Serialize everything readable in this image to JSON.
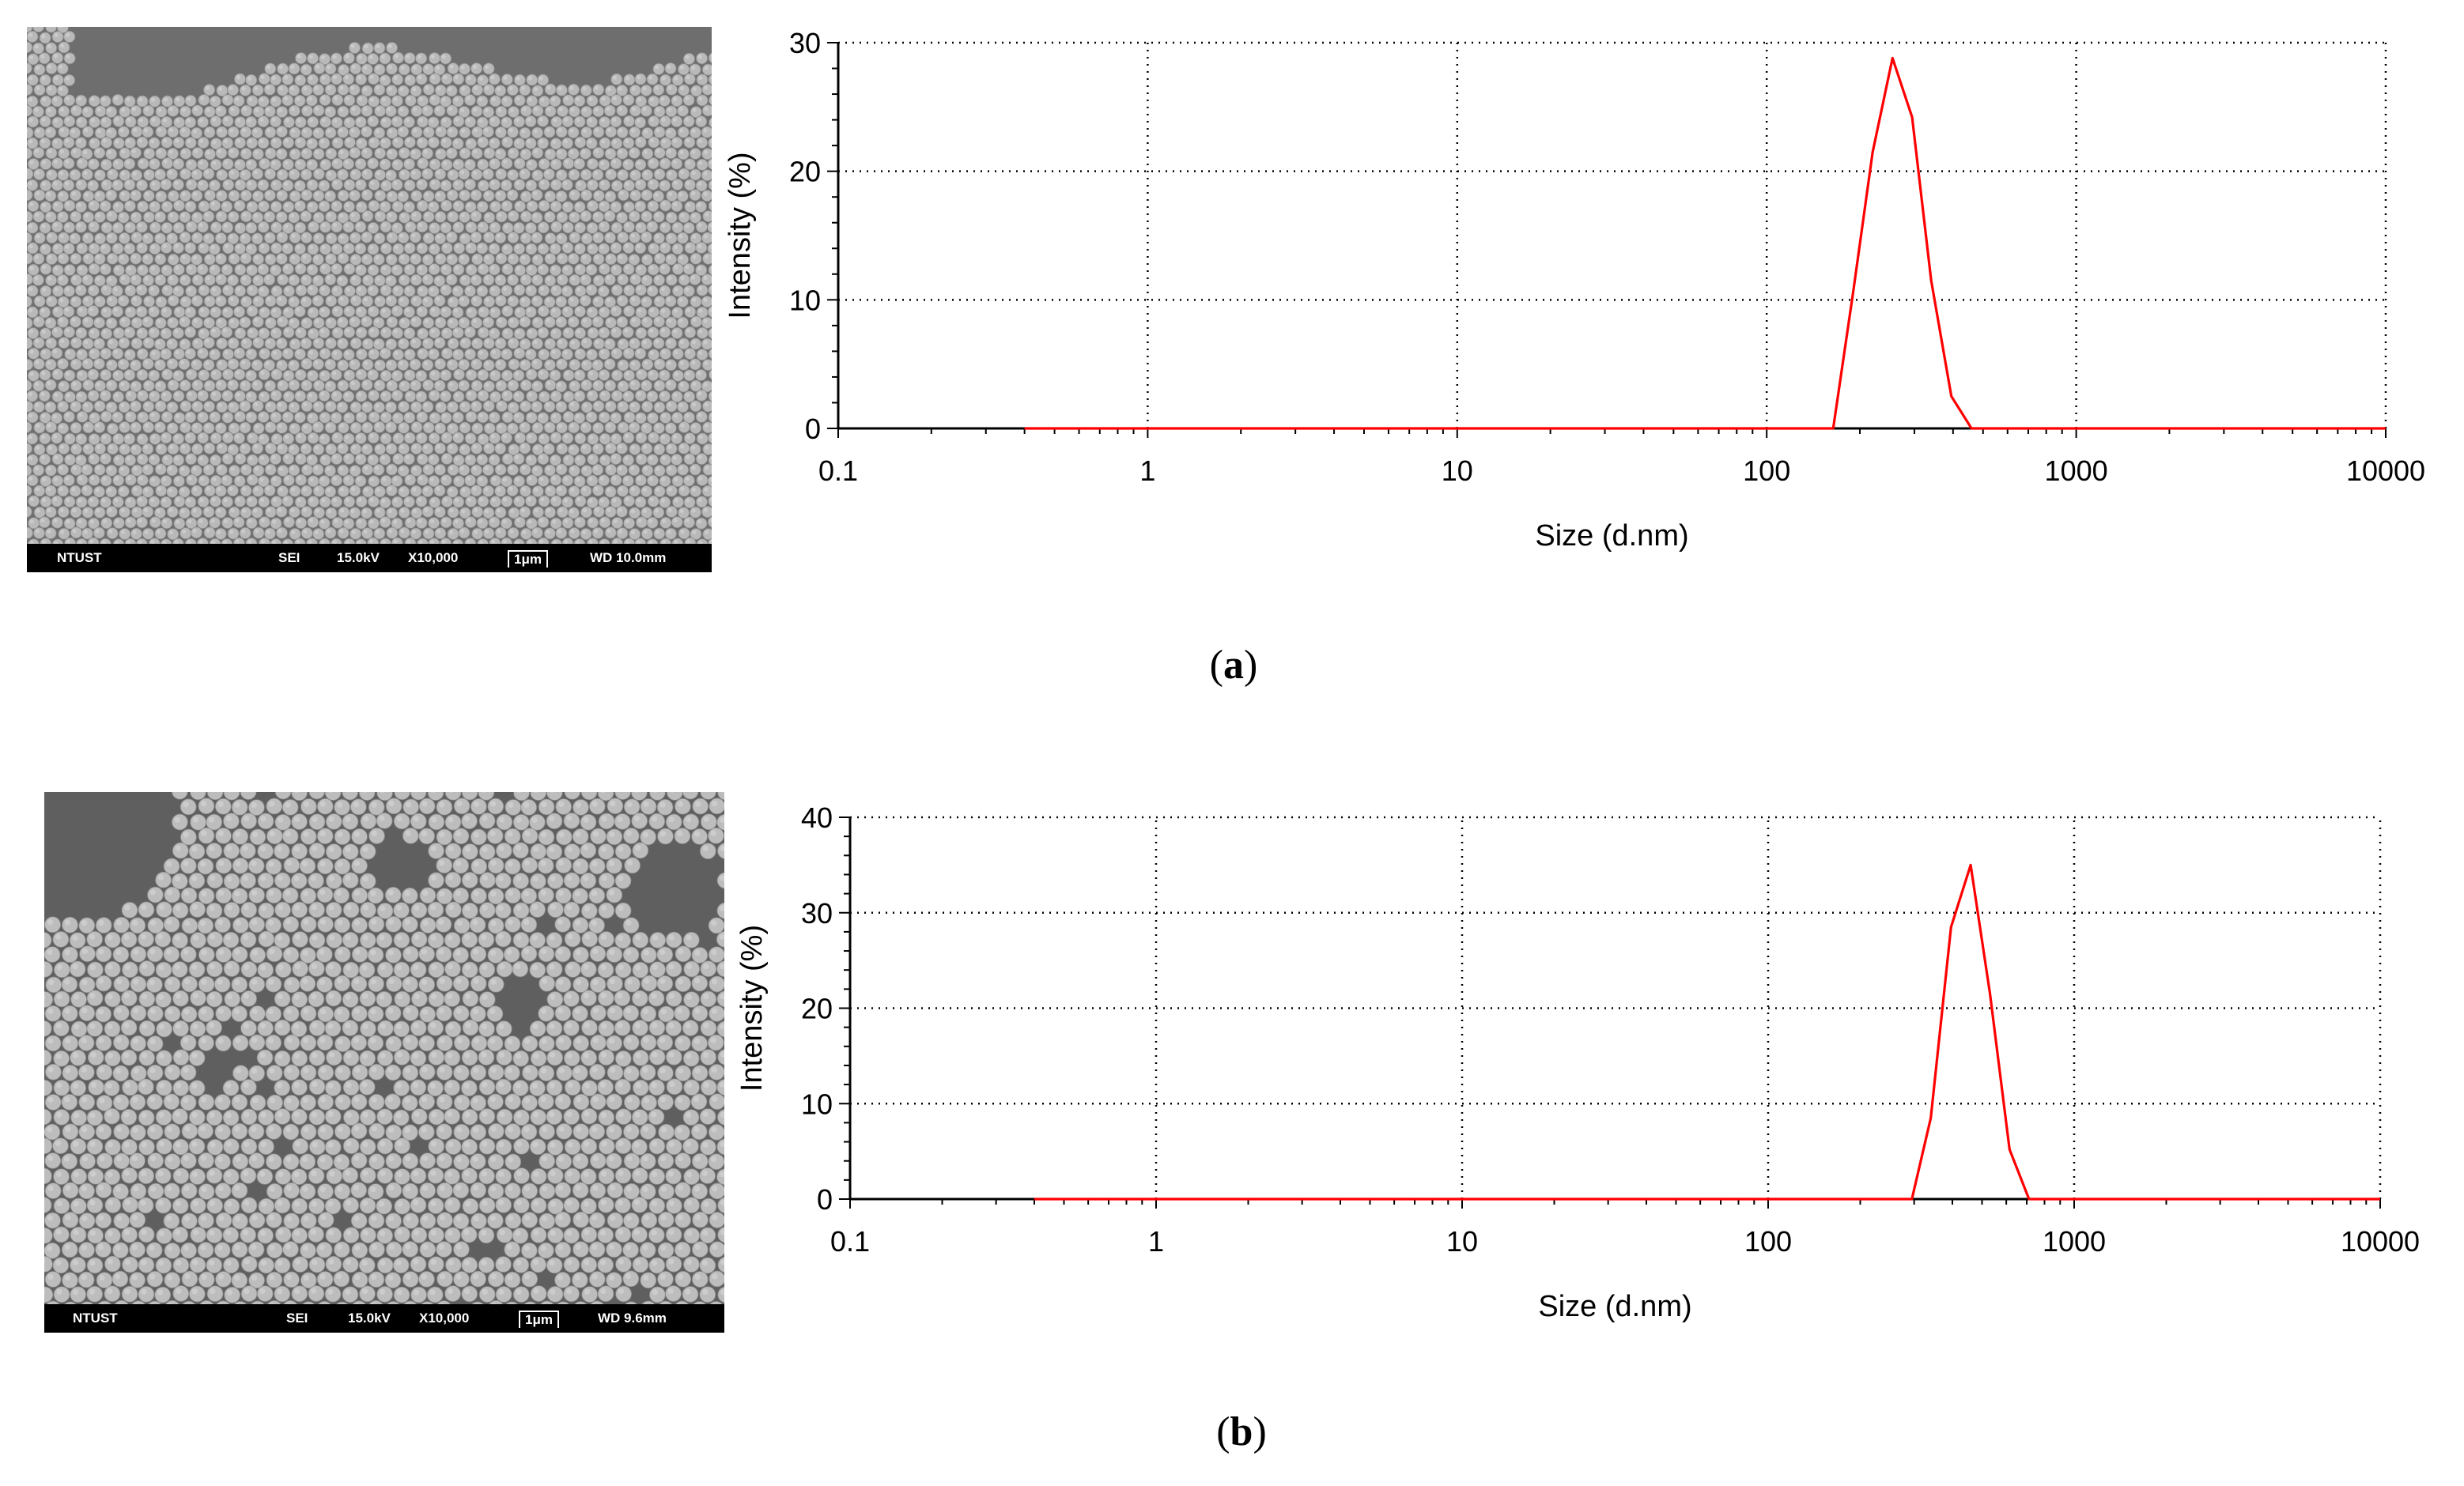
{
  "panels": [
    {
      "caption_letter": "a",
      "sem": {
        "labels": {
          "org": "NTUST",
          "mode": "SEI",
          "kv": "15.0kV",
          "mag": "X10,000",
          "scale": "1μm",
          "wd": "WD 10.0mm"
        },
        "background": "#6e6e6e",
        "sphere_color": "#b9b9b9"
      }
    },
    {
      "caption_letter": "b",
      "sem": {
        "labels": {
          "org": "NTUST",
          "mode": "SEI",
          "kv": "15.0kV",
          "mag": "X10,000",
          "scale": "1μm",
          "wd": "WD 9.6mm"
        },
        "background": "#5f5f5f",
        "sphere_color": "#bdbdbd"
      }
    }
  ],
  "chart_data": [
    {
      "type": "line",
      "xscale": "log",
      "xlim": [
        0.1,
        10000
      ],
      "ylim": [
        0,
        30
      ],
      "xticks": [
        "0.1",
        "1",
        "10",
        "100",
        "1000",
        "10000"
      ],
      "yticks": [
        "0",
        "10",
        "20",
        "30"
      ],
      "xlabel": "Size (d.nm)",
      "ylabel": "Intensity (%)",
      "grid": true,
      "line_color": "#ff0000",
      "series": [
        {
          "x": [
            0.4,
            164,
            190,
            220,
            255,
            295,
            340,
            395,
            459,
            10000
          ],
          "y": [
            0,
            0,
            10.5,
            21.5,
            28.8,
            24.2,
            11.5,
            2.5,
            0,
            0
          ]
        }
      ]
    },
    {
      "type": "line",
      "xscale": "log",
      "xlim": [
        0.1,
        10000
      ],
      "ylim": [
        0,
        40
      ],
      "xticks": [
        "0.1",
        "1",
        "10",
        "100",
        "1000",
        "10000"
      ],
      "yticks": [
        "0",
        "10",
        "20",
        "30",
        "40"
      ],
      "xlabel": "Size (d.nm)",
      "ylabel": "Intensity (%)",
      "grid": true,
      "line_color": "#ff0000",
      "series": [
        {
          "x": [
            0.4,
            295,
            340,
            396,
            459,
            531,
            615,
            712,
            10000
          ],
          "y": [
            0,
            0,
            8.5,
            28.5,
            35,
            21.5,
            5.2,
            0,
            0
          ]
        }
      ]
    }
  ]
}
